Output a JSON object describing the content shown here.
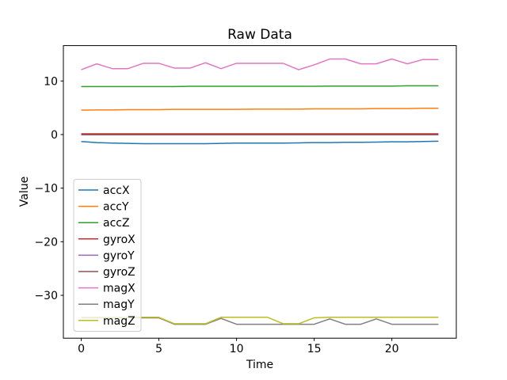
{
  "figure": {
    "background": "#ffffff",
    "text_color": "#000000",
    "spine_color": "#000000",
    "legend_border_color": "#cccccc",
    "legend_background": "#ffffff"
  },
  "chart_data": {
    "type": "line",
    "title": "Raw Data",
    "xlabel": "Time",
    "ylabel": "Value",
    "xlim": [
      -1.15,
      24.15
    ],
    "ylim": [
      -38.0,
      16.6
    ],
    "grid": false,
    "legend_position": "center left inside plot",
    "xticks": [
      {
        "value": 0,
        "label": "0"
      },
      {
        "value": 5,
        "label": "5"
      },
      {
        "value": 10,
        "label": "10"
      },
      {
        "value": 15,
        "label": "15"
      },
      {
        "value": 20,
        "label": "20"
      }
    ],
    "yticks": [
      {
        "value": 10,
        "label": "10"
      },
      {
        "value": 0,
        "label": "0"
      },
      {
        "value": -10,
        "label": "−10"
      },
      {
        "value": -20,
        "label": "−20"
      },
      {
        "value": -30,
        "label": "−30"
      }
    ],
    "x": [
      0,
      1,
      2,
      3,
      4,
      5,
      6,
      7,
      8,
      9,
      10,
      11,
      12,
      13,
      14,
      15,
      16,
      17,
      18,
      19,
      20,
      21,
      22,
      23
    ],
    "series": [
      {
        "name": "accX",
        "color": "#1f77b4",
        "values": [
          -1.3,
          -1.5,
          -1.6,
          -1.65,
          -1.7,
          -1.7,
          -1.7,
          -1.7,
          -1.7,
          -1.65,
          -1.6,
          -1.6,
          -1.6,
          -1.6,
          -1.55,
          -1.5,
          -1.5,
          -1.45,
          -1.45,
          -1.4,
          -1.35,
          -1.35,
          -1.3,
          -1.25
        ]
      },
      {
        "name": "accY",
        "color": "#ff7f0e",
        "values": [
          4.55,
          4.6,
          4.6,
          4.65,
          4.65,
          4.65,
          4.7,
          4.7,
          4.7,
          4.7,
          4.7,
          4.75,
          4.75,
          4.75,
          4.75,
          4.8,
          4.8,
          4.8,
          4.8,
          4.85,
          4.85,
          4.85,
          4.9,
          4.9
        ]
      },
      {
        "name": "accZ",
        "color": "#2ca02c",
        "values": [
          8.95,
          8.95,
          8.95,
          8.95,
          8.95,
          8.95,
          8.95,
          9.0,
          9.0,
          9.0,
          9.0,
          9.0,
          9.0,
          9.0,
          9.0,
          9.0,
          9.05,
          9.05,
          9.05,
          9.05,
          9.05,
          9.1,
          9.1,
          9.1
        ]
      },
      {
        "name": "gyroX",
        "color": "#d62728",
        "values": [
          0.15,
          0.15,
          0.15,
          0.15,
          0.15,
          0.15,
          0.15,
          0.15,
          0.15,
          0.15,
          0.15,
          0.15,
          0.15,
          0.15,
          0.15,
          0.15,
          0.15,
          0.15,
          0.15,
          0.15,
          0.15,
          0.15,
          0.15,
          0.15
        ]
      },
      {
        "name": "gyroY",
        "color": "#9467bd",
        "values": [
          -0.05,
          -0.05,
          -0.05,
          -0.05,
          -0.05,
          -0.05,
          -0.05,
          -0.05,
          -0.05,
          -0.05,
          -0.05,
          -0.05,
          -0.05,
          -0.05,
          -0.05,
          -0.05,
          -0.05,
          -0.05,
          -0.05,
          -0.05,
          -0.05,
          -0.05,
          -0.05,
          -0.05
        ]
      },
      {
        "name": "gyroZ",
        "color": "#8c564b",
        "values": [
          0.02,
          0.02,
          0.02,
          0.02,
          0.02,
          0.02,
          0.02,
          0.02,
          0.02,
          0.02,
          0.02,
          0.02,
          0.02,
          0.02,
          0.02,
          0.02,
          0.02,
          0.02,
          0.02,
          0.02,
          0.02,
          0.02,
          0.02,
          0.02
        ]
      },
      {
        "name": "magX",
        "color": "#e377c2",
        "values": [
          12.1,
          13.2,
          12.3,
          12.3,
          13.3,
          13.3,
          12.4,
          12.4,
          13.4,
          12.3,
          13.3,
          13.3,
          13.3,
          13.3,
          12.1,
          13.0,
          14.1,
          14.1,
          13.2,
          13.2,
          14.1,
          13.2,
          14.0,
          14.0
        ]
      },
      {
        "name": "magY",
        "color": "#7f7f7f",
        "values": [
          -34.2,
          -34.2,
          -34.2,
          -34.2,
          -34.2,
          -34.2,
          -35.4,
          -35.4,
          -35.4,
          -34.3,
          -35.4,
          -35.4,
          -35.4,
          -35.4,
          -35.4,
          -35.4,
          -34.4,
          -35.4,
          -35.4,
          -34.4,
          -35.4,
          -35.4,
          -35.4,
          -35.4
        ]
      },
      {
        "name": "magZ",
        "color": "#bcbd22",
        "values": [
          -34.1,
          -34.1,
          -34.1,
          -34.1,
          -34.1,
          -34.1,
          -35.3,
          -35.3,
          -35.3,
          -34.1,
          -34.1,
          -34.1,
          -34.1,
          -35.3,
          -35.3,
          -34.2,
          -34.1,
          -34.1,
          -34.1,
          -34.1,
          -34.1,
          -34.1,
          -34.1,
          -34.1
        ]
      }
    ]
  }
}
